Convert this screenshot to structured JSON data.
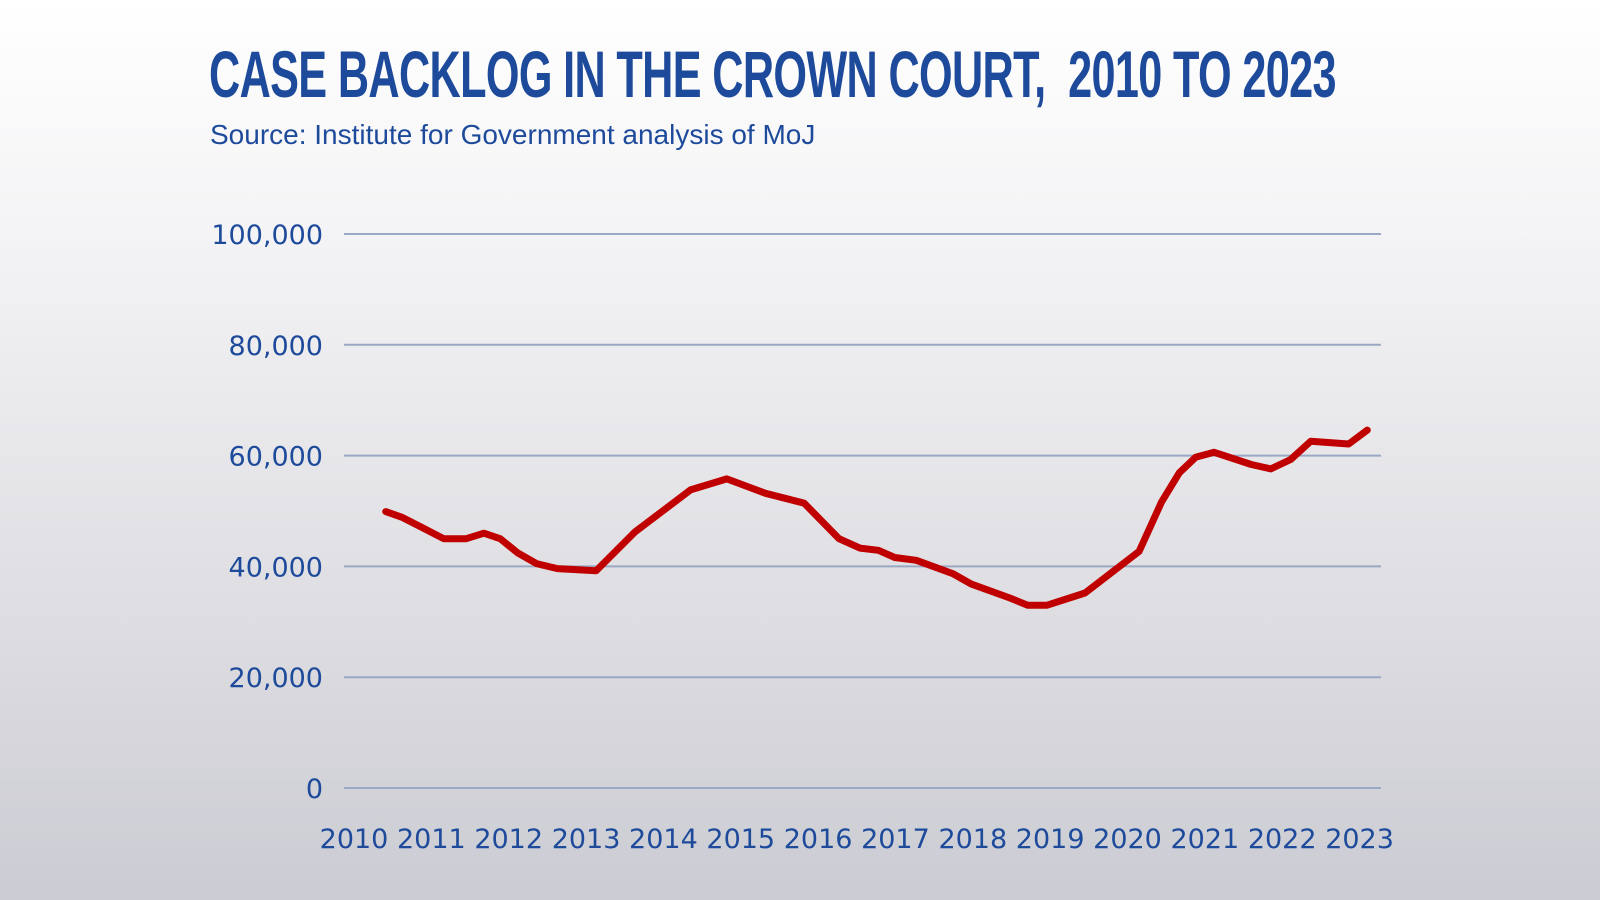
{
  "chart_data": {
    "type": "line",
    "title": "CASE BACKLOG IN THE CROWN COURT,  2010 TO 2023",
    "subtitle": "Source: Institute for Government analysis of MoJ",
    "xlabel": "",
    "ylabel": "",
    "xlim": [
      2010,
      2023
    ],
    "ylim": [
      0,
      100000
    ],
    "x_ticks": [
      "2010",
      "2011",
      "2012",
      "2013",
      "2014",
      "2015",
      "2016",
      "2017",
      "2018",
      "2019",
      "2020",
      "2021",
      "2022",
      "2023"
    ],
    "y_ticks": [
      {
        "value": 0,
        "label": "0"
      },
      {
        "value": 20000,
        "label": "20,000"
      },
      {
        "value": 40000,
        "label": "40,000"
      },
      {
        "value": 60000,
        "label": "60,000"
      },
      {
        "value": 80000,
        "label": "80,000"
      },
      {
        "value": 100000,
        "label": "100,000"
      }
    ],
    "grid": "horizontal",
    "legend": "none",
    "colors": {
      "line": "#c00000",
      "text": "#1d4a9a",
      "grid": "#9aa8c4"
    },
    "series": [
      {
        "x": [
          2010.41,
          2010.63,
          2010.87,
          2011.16,
          2011.45,
          2011.68,
          2011.89,
          2012.12,
          2012.36,
          2012.63,
          2013.13,
          2013.63,
          2014.35,
          2014.82,
          2015.32,
          2015.82,
          2016.27,
          2016.54,
          2016.78,
          2016.99,
          2017.27,
          2017.74,
          2017.98,
          2018.48,
          2018.71,
          2018.96,
          2019.45,
          2020.15,
          2020.44,
          2020.67,
          2020.88,
          2021.12,
          2021.6,
          2021.85,
          2022.11,
          2022.37,
          2022.86,
          2023.1
        ],
        "y": [
          49900,
          48800,
          47100,
          45000,
          45000,
          46000,
          45000,
          42400,
          40500,
          39600,
          39200,
          46200,
          53800,
          55800,
          53200,
          51400,
          45000,
          43300,
          42900,
          41600,
          41100,
          38700,
          36800,
          34300,
          33000,
          33000,
          35200,
          42700,
          51600,
          56900,
          59700,
          60600,
          58400,
          57600,
          59300,
          62600,
          62100,
          64600
        ]
      }
    ]
  }
}
